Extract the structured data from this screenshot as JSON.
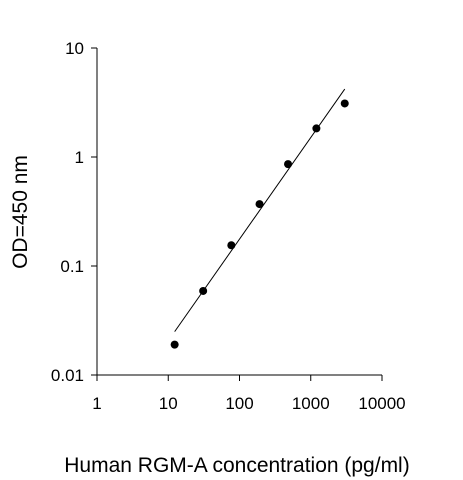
{
  "chart_data": {
    "type": "scatter",
    "title": "",
    "xlabel": "Human RGM-A concentration (pg/ml)",
    "ylabel": "OD=450 nm",
    "x_scale": "log",
    "y_scale": "log",
    "xlim": [
      1,
      10000
    ],
    "ylim": [
      0.01,
      10
    ],
    "x_ticks": [
      {
        "value": 1,
        "label": "1"
      },
      {
        "value": 10,
        "label": "10"
      },
      {
        "value": 100,
        "label": "100"
      },
      {
        "value": 1000,
        "label": "1000"
      },
      {
        "value": 10000,
        "label": "10000"
      }
    ],
    "y_ticks": [
      {
        "value": 0.01,
        "label": "0.01"
      },
      {
        "value": 0.1,
        "label": "0.1"
      },
      {
        "value": 1,
        "label": "1"
      },
      {
        "value": 10,
        "label": "10"
      }
    ],
    "grid": false,
    "legend": "none",
    "series": [
      {
        "points": [
          {
            "x": 12.3,
            "y": 0.019
          },
          {
            "x": 30.9,
            "y": 0.059
          },
          {
            "x": 76.8,
            "y": 0.155
          },
          {
            "x": 191,
            "y": 0.37
          },
          {
            "x": 480,
            "y": 0.86
          },
          {
            "x": 1200,
            "y": 1.83
          },
          {
            "x": 3000,
            "y": 3.1
          }
        ],
        "color": "#000000"
      }
    ],
    "fit_line": {
      "points": [
        {
          "x": 12.3,
          "y": 0.025
        },
        {
          "x": 3000,
          "y": 4.2
        }
      ],
      "color": "#000000"
    }
  }
}
